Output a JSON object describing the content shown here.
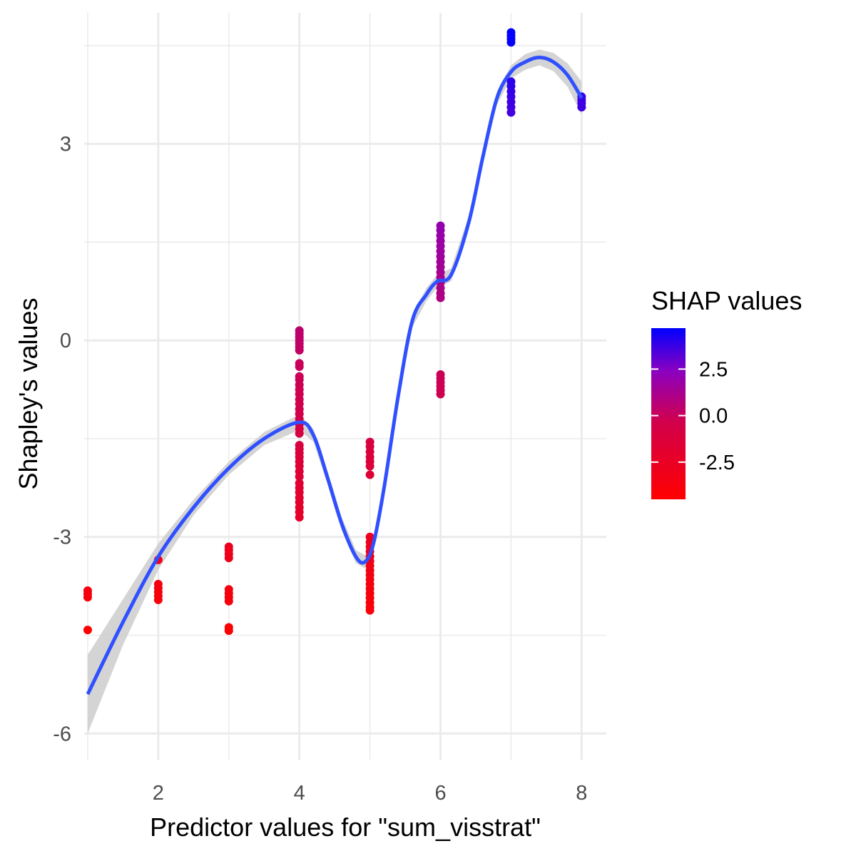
{
  "chart_data": {
    "type": "scatter",
    "title": "",
    "xlabel": "Predictor values for \"sum_visstrat\"",
    "ylabel": "Shapley's values",
    "xlim": [
      0.95,
      8.35
    ],
    "ylim": [
      -6.4,
      5.0
    ],
    "x_ticks": [
      2,
      4,
      6,
      8
    ],
    "x_tick_labels": [
      "2",
      "4",
      "6",
      "8"
    ],
    "y_ticks": [
      -6,
      -3,
      0,
      3
    ],
    "y_tick_labels": [
      "-6",
      "-3",
      "0",
      "3"
    ],
    "grid": true,
    "legend": {
      "title": "SHAP values",
      "position": "right",
      "type": "colorbar",
      "range": [
        -4.5,
        4.7
      ],
      "tick_values": [
        2.5,
        0.0,
        -2.5
      ],
      "tick_labels": [
        "2.5",
        "0.0",
        "-2.5"
      ],
      "low_color": "#ff0000",
      "mid_color": "#c8005a",
      "high_color": "#0000ff"
    },
    "points_color_encoding": "SHAP value",
    "points": [
      {
        "x": 1,
        "y": -3.82
      },
      {
        "x": 1,
        "y": -3.87
      },
      {
        "x": 1,
        "y": -3.92
      },
      {
        "x": 1,
        "y": -4.42
      },
      {
        "x": 2,
        "y": -3.35
      },
      {
        "x": 2,
        "y": -3.72
      },
      {
        "x": 2,
        "y": -3.78
      },
      {
        "x": 2,
        "y": -3.84
      },
      {
        "x": 2,
        "y": -3.9
      },
      {
        "x": 2,
        "y": -3.96
      },
      {
        "x": 3,
        "y": -3.15
      },
      {
        "x": 3,
        "y": -3.2
      },
      {
        "x": 3,
        "y": -3.26
      },
      {
        "x": 3,
        "y": -3.32
      },
      {
        "x": 3,
        "y": -3.8
      },
      {
        "x": 3,
        "y": -3.86
      },
      {
        "x": 3,
        "y": -3.92
      },
      {
        "x": 3,
        "y": -3.98
      },
      {
        "x": 3,
        "y": -4.38
      },
      {
        "x": 3,
        "y": -4.43
      },
      {
        "x": 4,
        "y": 0.15
      },
      {
        "x": 4,
        "y": 0.1
      },
      {
        "x": 4,
        "y": 0.05
      },
      {
        "x": 4,
        "y": 0.0
      },
      {
        "x": 4,
        "y": -0.05
      },
      {
        "x": 4,
        "y": -0.1
      },
      {
        "x": 4,
        "y": -0.15
      },
      {
        "x": 4,
        "y": -0.35
      },
      {
        "x": 4,
        "y": -0.4
      },
      {
        "x": 4,
        "y": -0.55
      },
      {
        "x": 4,
        "y": -0.6
      },
      {
        "x": 4,
        "y": -0.68
      },
      {
        "x": 4,
        "y": -0.75
      },
      {
        "x": 4,
        "y": -0.82
      },
      {
        "x": 4,
        "y": -0.9
      },
      {
        "x": 4,
        "y": -0.97
      },
      {
        "x": 4,
        "y": -1.05
      },
      {
        "x": 4,
        "y": -1.12
      },
      {
        "x": 4,
        "y": -1.2
      },
      {
        "x": 4,
        "y": -1.28
      },
      {
        "x": 4,
        "y": -1.35
      },
      {
        "x": 4,
        "y": -1.42
      },
      {
        "x": 4,
        "y": -1.6
      },
      {
        "x": 4,
        "y": -1.66
      },
      {
        "x": 4,
        "y": -1.72
      },
      {
        "x": 4,
        "y": -1.78
      },
      {
        "x": 4,
        "y": -1.85
      },
      {
        "x": 4,
        "y": -1.92
      },
      {
        "x": 4,
        "y": -2.0
      },
      {
        "x": 4,
        "y": -2.08
      },
      {
        "x": 4,
        "y": -2.18
      },
      {
        "x": 4,
        "y": -2.25
      },
      {
        "x": 4,
        "y": -2.32
      },
      {
        "x": 4,
        "y": -2.4
      },
      {
        "x": 4,
        "y": -2.47
      },
      {
        "x": 4,
        "y": -2.55
      },
      {
        "x": 4,
        "y": -2.62
      },
      {
        "x": 4,
        "y": -2.7
      },
      {
        "x": 5,
        "y": -1.55
      },
      {
        "x": 5,
        "y": -1.62
      },
      {
        "x": 5,
        "y": -1.7
      },
      {
        "x": 5,
        "y": -1.78
      },
      {
        "x": 5,
        "y": -1.85
      },
      {
        "x": 5,
        "y": -1.92
      },
      {
        "x": 5,
        "y": -2.05
      },
      {
        "x": 5,
        "y": -3.0
      },
      {
        "x": 5,
        "y": -3.08
      },
      {
        "x": 5,
        "y": -3.15
      },
      {
        "x": 5,
        "y": -3.22
      },
      {
        "x": 5,
        "y": -3.3
      },
      {
        "x": 5,
        "y": -3.37
      },
      {
        "x": 5,
        "y": -3.44
      },
      {
        "x": 5,
        "y": -3.51
      },
      {
        "x": 5,
        "y": -3.58
      },
      {
        "x": 5,
        "y": -3.65
      },
      {
        "x": 5,
        "y": -3.72
      },
      {
        "x": 5,
        "y": -3.79
      },
      {
        "x": 5,
        "y": -3.86
      },
      {
        "x": 5,
        "y": -3.93
      },
      {
        "x": 5,
        "y": -4.0
      },
      {
        "x": 5,
        "y": -4.07
      },
      {
        "x": 5,
        "y": -4.12
      },
      {
        "x": 6,
        "y": 1.75
      },
      {
        "x": 6,
        "y": 1.68
      },
      {
        "x": 6,
        "y": 1.6
      },
      {
        "x": 6,
        "y": 1.52
      },
      {
        "x": 6,
        "y": 1.44
      },
      {
        "x": 6,
        "y": 1.36
      },
      {
        "x": 6,
        "y": 1.28
      },
      {
        "x": 6,
        "y": 1.2
      },
      {
        "x": 6,
        "y": 1.12
      },
      {
        "x": 6,
        "y": 1.04
      },
      {
        "x": 6,
        "y": 0.96
      },
      {
        "x": 6,
        "y": 0.88
      },
      {
        "x": 6,
        "y": 0.8
      },
      {
        "x": 6,
        "y": 0.72
      },
      {
        "x": 6,
        "y": 0.65
      },
      {
        "x": 6,
        "y": -0.52
      },
      {
        "x": 6,
        "y": -0.58
      },
      {
        "x": 6,
        "y": -0.64
      },
      {
        "x": 6,
        "y": -0.7
      },
      {
        "x": 6,
        "y": -0.76
      },
      {
        "x": 6,
        "y": -0.82
      },
      {
        "x": 7,
        "y": 4.7
      },
      {
        "x": 7,
        "y": 4.65
      },
      {
        "x": 7,
        "y": 4.6
      },
      {
        "x": 7,
        "y": 4.55
      },
      {
        "x": 7,
        "y": 3.95
      },
      {
        "x": 7,
        "y": 3.88
      },
      {
        "x": 7,
        "y": 3.8
      },
      {
        "x": 7,
        "y": 3.72
      },
      {
        "x": 7,
        "y": 3.64
      },
      {
        "x": 7,
        "y": 3.56
      },
      {
        "x": 7,
        "y": 3.48
      },
      {
        "x": 8,
        "y": 3.72
      },
      {
        "x": 8,
        "y": 3.67
      },
      {
        "x": 8,
        "y": 3.62
      },
      {
        "x": 8,
        "y": 3.56
      }
    ],
    "smooth_line": {
      "color": "#3050ff",
      "x": [
        1.0,
        1.5,
        2.0,
        2.5,
        3.0,
        3.5,
        4.0,
        4.2,
        4.4,
        4.6,
        4.8,
        4.93,
        5.05,
        5.2,
        5.4,
        5.6,
        5.8,
        5.95,
        6.15,
        6.4,
        6.6,
        6.8,
        7.0,
        7.2,
        7.4,
        7.6,
        7.8,
        8.0
      ],
      "y": [
        -5.4,
        -4.3,
        -3.3,
        -2.55,
        -1.95,
        -1.5,
        -1.25,
        -1.45,
        -2.1,
        -2.8,
        -3.3,
        -3.38,
        -3.1,
        -2.25,
        -0.85,
        0.3,
        0.7,
        0.9,
        1.0,
        1.8,
        2.8,
        3.7,
        4.1,
        4.25,
        4.32,
        4.25,
        4.05,
        3.7
      ]
    },
    "confidence_band": {
      "color": "#cccccc",
      "x": [
        1.0,
        1.5,
        2.0,
        2.5,
        3.0,
        3.5,
        4.0,
        4.2,
        4.4,
        4.6,
        4.8,
        4.93,
        5.05,
        5.2,
        5.4,
        5.6,
        5.8,
        5.95,
        6.15,
        6.4,
        6.6,
        6.8,
        7.0,
        7.2,
        7.4,
        7.6,
        7.8,
        8.0
      ],
      "half_width": [
        0.6,
        0.35,
        0.2,
        0.12,
        0.1,
        0.1,
        0.12,
        0.1,
        0.1,
        0.1,
        0.1,
        0.1,
        0.1,
        0.1,
        0.1,
        0.1,
        0.1,
        0.1,
        0.1,
        0.1,
        0.1,
        0.1,
        0.1,
        0.12,
        0.12,
        0.14,
        0.18,
        0.25
      ]
    }
  }
}
